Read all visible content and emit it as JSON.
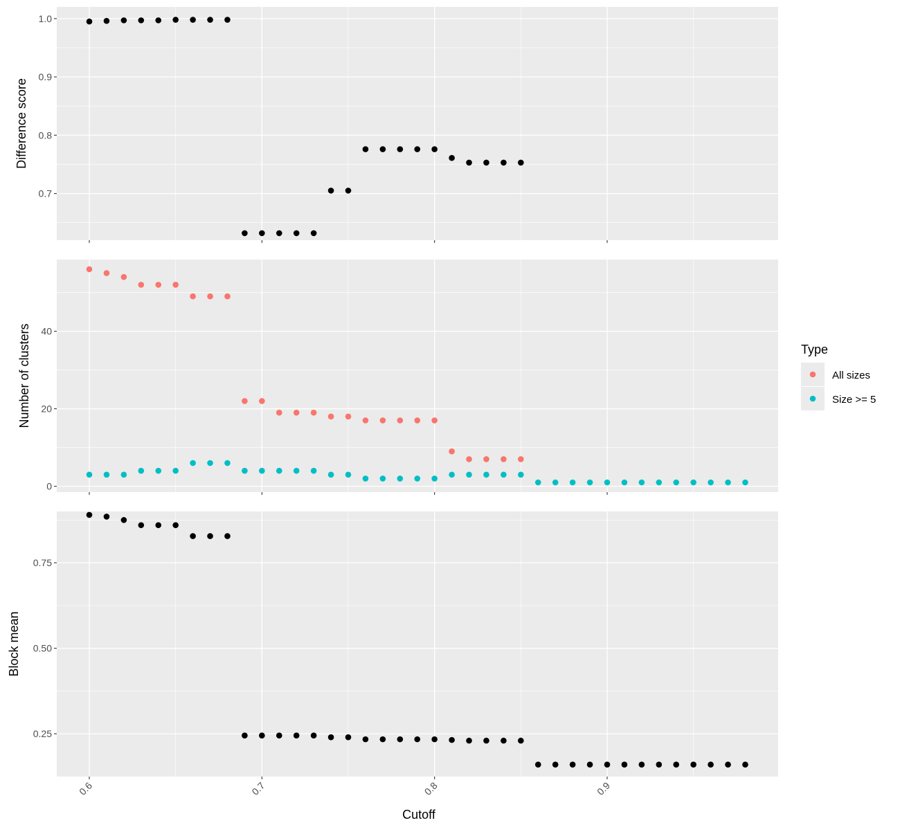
{
  "chart_data": [
    {
      "type": "scatter",
      "panel": "top",
      "ylabel": "Difference score",
      "xlim": [
        0.6,
        0.98
      ],
      "ylim": [
        0.62,
        1.02
      ],
      "y_ticks": [
        {
          "value": 0.7,
          "label": "0.7"
        },
        {
          "value": 0.8,
          "label": "0.8"
        },
        {
          "value": 0.9,
          "label": "0.9"
        },
        {
          "value": 1.0,
          "label": "1.0"
        }
      ],
      "x_ticks": [
        {
          "value": 0.6,
          "label": "0.6"
        },
        {
          "value": 0.7,
          "label": "0.7"
        },
        {
          "value": 0.8,
          "label": "0.8"
        },
        {
          "value": 0.9,
          "label": "0.9"
        }
      ],
      "show_x_labels": false,
      "grid": true,
      "series": [
        {
          "color": "#000000",
          "x": [
            0.6,
            0.61,
            0.62,
            0.63,
            0.64,
            0.65,
            0.66,
            0.67,
            0.68,
            0.69,
            0.7,
            0.71,
            0.72,
            0.73,
            0.74,
            0.75,
            0.76,
            0.77,
            0.78,
            0.79,
            0.8,
            0.81,
            0.82,
            0.83,
            0.84,
            0.85
          ],
          "y": [
            0.995,
            0.996,
            0.997,
            0.997,
            0.997,
            0.998,
            0.998,
            0.998,
            0.998,
            0.632,
            0.632,
            0.632,
            0.632,
            0.632,
            0.705,
            0.705,
            0.776,
            0.776,
            0.776,
            0.776,
            0.776,
            0.761,
            0.753,
            0.753,
            0.753,
            0.753
          ]
        }
      ]
    },
    {
      "type": "scatter",
      "panel": "middle",
      "ylabel": "Number of clusters",
      "xlim": [
        0.6,
        0.98
      ],
      "ylim": [
        -1.5,
        58.5
      ],
      "y_ticks": [
        {
          "value": 0,
          "label": "0"
        },
        {
          "value": 20,
          "label": "20"
        },
        {
          "value": 40,
          "label": "40"
        }
      ],
      "x_ticks": [
        {
          "value": 0.6,
          "label": "0.6"
        },
        {
          "value": 0.7,
          "label": "0.7"
        },
        {
          "value": 0.8,
          "label": "0.8"
        },
        {
          "value": 0.9,
          "label": "0.9"
        }
      ],
      "show_x_labels": false,
      "grid": true,
      "legend": {
        "title": "Type",
        "position": "right"
      },
      "series": [
        {
          "name": "All sizes",
          "color": "#F8766D",
          "x": [
            0.6,
            0.61,
            0.62,
            0.63,
            0.64,
            0.65,
            0.66,
            0.67,
            0.68,
            0.69,
            0.7,
            0.71,
            0.72,
            0.73,
            0.74,
            0.75,
            0.76,
            0.77,
            0.78,
            0.79,
            0.8,
            0.81,
            0.82,
            0.83,
            0.84,
            0.85
          ],
          "y": [
            56,
            55,
            54,
            52,
            52,
            52,
            49,
            49,
            49,
            22,
            22,
            19,
            19,
            19,
            18,
            18,
            17,
            17,
            17,
            17,
            17,
            9,
            7,
            7,
            7,
            7
          ]
        },
        {
          "name": "Size >= 5",
          "color": "#00BFC4",
          "x": [
            0.6,
            0.61,
            0.62,
            0.63,
            0.64,
            0.65,
            0.66,
            0.67,
            0.68,
            0.69,
            0.7,
            0.71,
            0.72,
            0.73,
            0.74,
            0.75,
            0.76,
            0.77,
            0.78,
            0.79,
            0.8,
            0.81,
            0.82,
            0.83,
            0.84,
            0.85,
            0.86,
            0.87,
            0.88,
            0.89,
            0.9,
            0.91,
            0.92,
            0.93,
            0.94,
            0.95,
            0.96,
            0.97,
            0.98
          ],
          "y": [
            3,
            3,
            3,
            4,
            4,
            4,
            6,
            6,
            6,
            4,
            4,
            4,
            4,
            4,
            3,
            3,
            2,
            2,
            2,
            2,
            2,
            3,
            3,
            3,
            3,
            3,
            1,
            1,
            1,
            1,
            1,
            1,
            1,
            1,
            1,
            1,
            1,
            1,
            1
          ]
        }
      ]
    },
    {
      "type": "scatter",
      "panel": "bottom",
      "ylabel": "Block mean",
      "xlabel": "Cutoff",
      "xlim": [
        0.6,
        0.98
      ],
      "ylim": [
        0.125,
        0.9
      ],
      "y_ticks": [
        {
          "value": 0.25,
          "label": "0.25"
        },
        {
          "value": 0.5,
          "label": "0.50"
        },
        {
          "value": 0.75,
          "label": "0.75"
        }
      ],
      "x_ticks": [
        {
          "value": 0.6,
          "label": "0.6"
        },
        {
          "value": 0.7,
          "label": "0.7"
        },
        {
          "value": 0.8,
          "label": "0.8"
        },
        {
          "value": 0.9,
          "label": "0.9"
        }
      ],
      "show_x_labels": true,
      "x_label_rotation": -45,
      "grid": true,
      "series": [
        {
          "color": "#000000",
          "x": [
            0.6,
            0.61,
            0.62,
            0.63,
            0.64,
            0.65,
            0.66,
            0.67,
            0.68,
            0.69,
            0.7,
            0.71,
            0.72,
            0.73,
            0.74,
            0.75,
            0.76,
            0.77,
            0.78,
            0.79,
            0.8,
            0.81,
            0.82,
            0.83,
            0.84,
            0.85,
            0.86,
            0.87,
            0.88,
            0.89,
            0.9,
            0.91,
            0.92,
            0.93,
            0.94,
            0.95,
            0.96,
            0.97,
            0.98
          ],
          "y": [
            0.89,
            0.885,
            0.875,
            0.86,
            0.86,
            0.86,
            0.828,
            0.828,
            0.828,
            0.245,
            0.245,
            0.245,
            0.245,
            0.245,
            0.24,
            0.24,
            0.234,
            0.234,
            0.234,
            0.234,
            0.234,
            0.232,
            0.23,
            0.23,
            0.23,
            0.23,
            0.16,
            0.16,
            0.16,
            0.16,
            0.16,
            0.16,
            0.16,
            0.16,
            0.16,
            0.16,
            0.16,
            0.16,
            0.16
          ]
        }
      ]
    }
  ],
  "colors": {
    "panel_background": "#EBEBEB",
    "grid_major": "#FFFFFF",
    "axis_text": "#4D4D4D",
    "title_text": "#000000",
    "tick_mark": "#333333"
  }
}
